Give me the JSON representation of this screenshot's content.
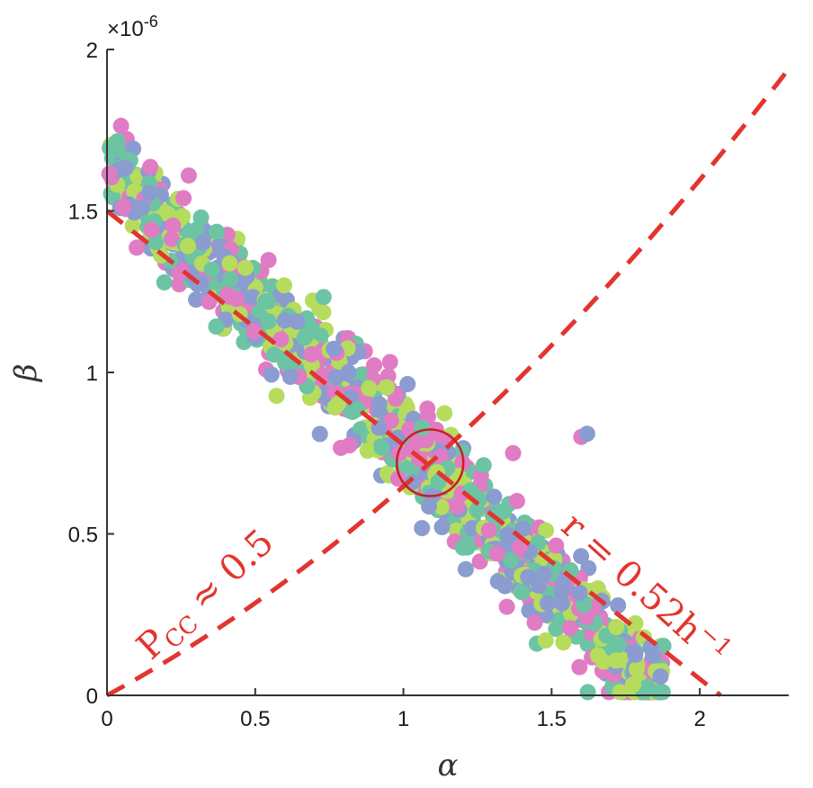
{
  "chart_data": {
    "type": "scatter",
    "xlabel": "α",
    "ylabel": "β",
    "y_multiplier_label": "×10",
    "y_multiplier_exp": "-6",
    "xlim": [
      0,
      2.3
    ],
    "ylim": [
      0,
      2.0
    ],
    "x_ticks": [
      {
        "value": 0,
        "label": "0"
      },
      {
        "value": 0.5,
        "label": "0.5"
      },
      {
        "value": 1,
        "label": "1"
      },
      {
        "value": 1.5,
        "label": "1.5"
      },
      {
        "value": 2,
        "label": "2"
      }
    ],
    "y_ticks": [
      {
        "value": 0,
        "label": "0"
      },
      {
        "value": 0.5,
        "label": "0.5"
      },
      {
        "value": 1,
        "label": "1"
      },
      {
        "value": 1.5,
        "label": "1.5"
      },
      {
        "value": 2,
        "label": "2"
      }
    ],
    "point_colors": [
      "#e07cc4",
      "#8a9cd0",
      "#6cc4a4",
      "#b6dc5e"
    ],
    "trend_center": {
      "x": [
        0.05,
        0.2,
        0.4,
        0.6,
        0.8,
        1.0,
        1.2,
        1.4,
        1.6,
        1.8
      ],
      "y": [
        1.62,
        1.45,
        1.28,
        1.13,
        0.97,
        0.8,
        0.6,
        0.42,
        0.25,
        0.05
      ]
    },
    "outliers": [
      {
        "x": 1.6,
        "y": 0.8
      },
      {
        "x": 1.62,
        "y": 0.81
      },
      {
        "x": 1.45,
        "y": 0.16
      },
      {
        "x": 1.48,
        "y": 0.17
      },
      {
        "x": 1.37,
        "y": 0.75
      }
    ],
    "lines": [
      {
        "label_main": "r = 0.52h",
        "label_sup": "−1",
        "color": "#e3342f",
        "style": "dashed",
        "x": [
          0,
          2.07
        ],
        "y": [
          1.5,
          0
        ]
      },
      {
        "label_main": "P",
        "label_sub": "CC",
        "label_rest": " ≈ 0.5",
        "color": "#e3342f",
        "style": "dashed",
        "form": "curve",
        "x0": 0,
        "y0": 0,
        "x1": 2.3,
        "y1": 1.94,
        "passes_x": 1.09,
        "passes_y": 0.72
      }
    ],
    "marker": {
      "type": "circle",
      "x": 1.09,
      "y": 0.72,
      "color": "#c8201e"
    },
    "legend": "none",
    "grid": false
  }
}
